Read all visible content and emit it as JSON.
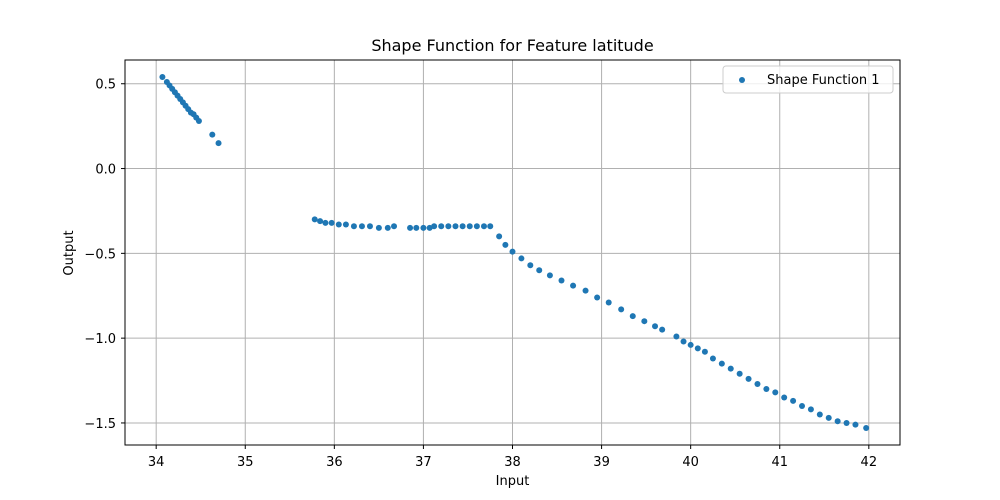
{
  "chart_data": {
    "type": "scatter",
    "title": "Shape Function for Feature latitude",
    "xlabel": "Input",
    "ylabel": "Output",
    "xlim": [
      33.65,
      42.35
    ],
    "ylim": [
      -1.63,
      0.64
    ],
    "xticks": [
      34,
      35,
      36,
      37,
      38,
      39,
      40,
      41,
      42
    ],
    "xtick_labels": [
      "34",
      "35",
      "36",
      "37",
      "38",
      "39",
      "40",
      "41",
      "42"
    ],
    "yticks": [
      0.5,
      0.0,
      -0.5,
      -1.0,
      -1.5
    ],
    "ytick_labels": [
      "0.5",
      "0.0",
      "−0.5",
      "−1.0",
      "−1.5"
    ],
    "grid": true,
    "legend_position": "top-right",
    "series": [
      {
        "name": "Shape Function 1",
        "color": "#1f77b4",
        "x": [
          34.07,
          34.12,
          34.15,
          34.18,
          34.21,
          34.24,
          34.27,
          34.3,
          34.33,
          34.36,
          34.39,
          34.42,
          34.45,
          34.48,
          34.63,
          34.7,
          35.78,
          35.84,
          35.9,
          35.97,
          36.05,
          36.13,
          36.22,
          36.31,
          36.4,
          36.5,
          36.6,
          36.67,
          36.85,
          36.92,
          37.0,
          37.07,
          37.12,
          37.2,
          37.28,
          37.36,
          37.44,
          37.52,
          37.6,
          37.68,
          37.75,
          37.85,
          37.92,
          38.0,
          38.1,
          38.2,
          38.3,
          38.42,
          38.55,
          38.68,
          38.82,
          38.95,
          39.08,
          39.22,
          39.35,
          39.48,
          39.6,
          39.68,
          39.84,
          39.92,
          40.0,
          40.08,
          40.16,
          40.25,
          40.35,
          40.45,
          40.55,
          40.65,
          40.75,
          40.85,
          40.95,
          41.05,
          41.15,
          41.25,
          41.35,
          41.45,
          41.55,
          41.65,
          41.75,
          41.85,
          41.97
        ],
        "y": [
          0.54,
          0.51,
          0.49,
          0.47,
          0.45,
          0.43,
          0.41,
          0.39,
          0.37,
          0.35,
          0.33,
          0.32,
          0.3,
          0.28,
          0.2,
          0.15,
          -0.3,
          -0.31,
          -0.32,
          -0.32,
          -0.33,
          -0.33,
          -0.34,
          -0.34,
          -0.34,
          -0.35,
          -0.35,
          -0.34,
          -0.35,
          -0.35,
          -0.35,
          -0.35,
          -0.34,
          -0.34,
          -0.34,
          -0.34,
          -0.34,
          -0.34,
          -0.34,
          -0.34,
          -0.34,
          -0.4,
          -0.45,
          -0.49,
          -0.53,
          -0.57,
          -0.6,
          -0.63,
          -0.66,
          -0.69,
          -0.72,
          -0.76,
          -0.79,
          -0.83,
          -0.87,
          -0.9,
          -0.93,
          -0.95,
          -0.99,
          -1.02,
          -1.04,
          -1.06,
          -1.08,
          -1.12,
          -1.15,
          -1.18,
          -1.21,
          -1.24,
          -1.27,
          -1.3,
          -1.32,
          -1.35,
          -1.37,
          -1.4,
          -1.42,
          -1.45,
          -1.47,
          -1.49,
          -1.5,
          -1.51,
          -1.53
        ]
      }
    ]
  }
}
